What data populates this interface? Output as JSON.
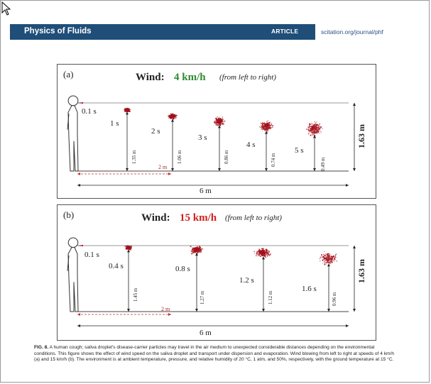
{
  "header": {
    "journal": "Physics of Fluids",
    "section": "ARTICLE",
    "url": "scitation.org/journal/phf"
  },
  "colors": {
    "header_bg": "#1f4e78",
    "wind_green": "#2e8b2e",
    "wind_red": "#d11f1f",
    "droplet": "#a3101a"
  },
  "panels": [
    {
      "label": "(a)",
      "wind_prefix": "Wind:",
      "wind_speed": "4 km/h",
      "direction": "(from left to right)",
      "release_time": "0.1 s",
      "clouds": [
        {
          "time": "1 s",
          "height": "1.35 m"
        },
        {
          "time": "2 s",
          "height": "1.06 m"
        },
        {
          "time": "3 s",
          "height": "0.86 m"
        },
        {
          "time": "4 s",
          "height": "0.74 m"
        },
        {
          "time": "5 s",
          "height": "0.49 m"
        }
      ],
      "marker_distance": "2 m",
      "total_distance": "6 m",
      "person_height": "1.63 m"
    },
    {
      "label": "(b)",
      "wind_prefix": "Wind:",
      "wind_speed": "15 km/h",
      "direction": "(from left to right)",
      "release_time": "0.1 s",
      "clouds": [
        {
          "time": "0.4 s",
          "height": "1.45 m"
        },
        {
          "time": "0.8 s",
          "height": "1.27 m"
        },
        {
          "time": "1.2 s",
          "height": "1.12 m"
        },
        {
          "time": "1.6 s",
          "height": "0.96 m"
        }
      ],
      "marker_distance": "2 m",
      "total_distance": "6 m",
      "person_height": "1.63 m"
    }
  ],
  "caption": {
    "label": "FIG. 8.",
    "text": "A human cough; saliva droplet's disease-carrier particles may travel in the air medium to unexpected considerable distances depending on the environmental conditions. This figure shows the effect of wind speed on the saliva droplet and transport under dispersion and evaporation. Wind blowing from left to right at speeds of 4 km/h (a) and 15 km/h (b). The environment is at ambient temperature, pressure, and relative humidity of 20 °C, 1 atm, and 50%, respectively, with the ground temperature at 15 °C."
  }
}
